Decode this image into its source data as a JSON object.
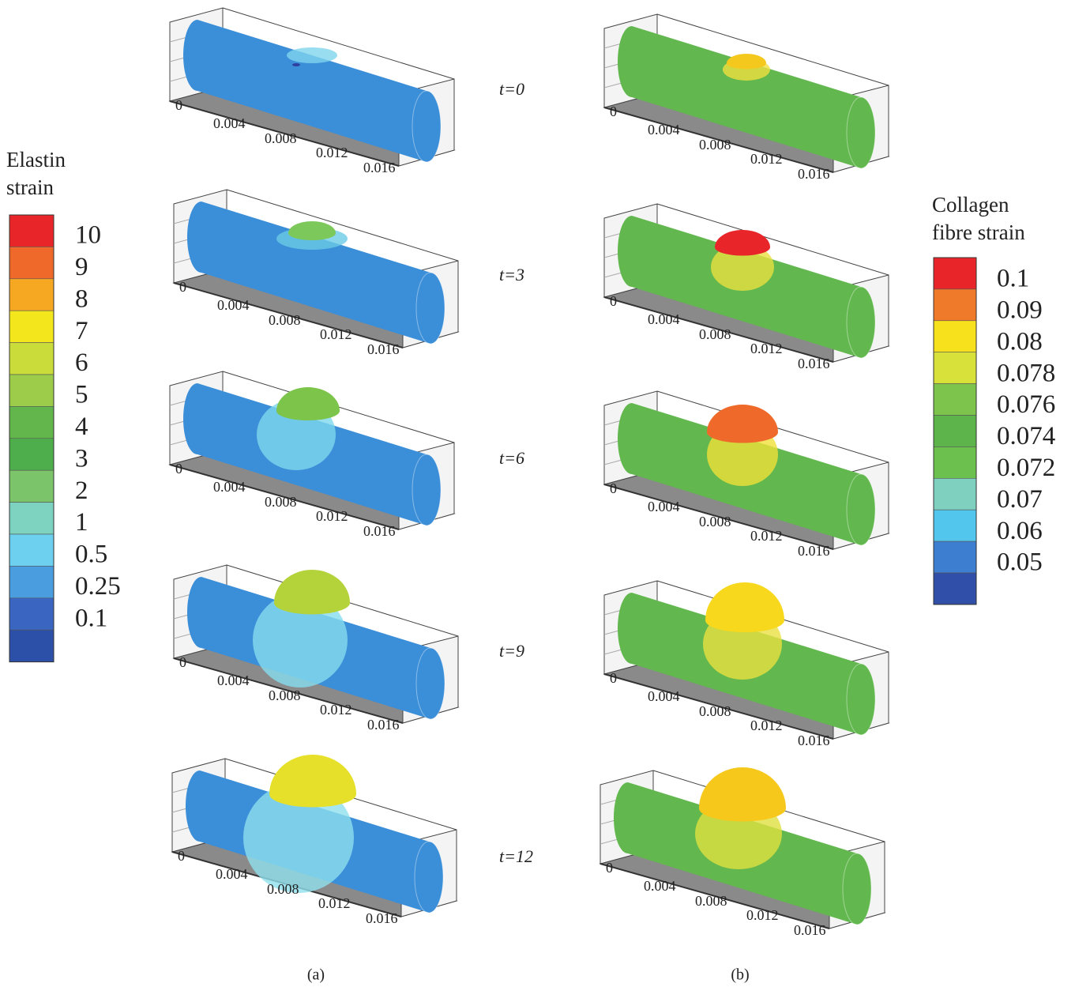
{
  "legend_a": {
    "title": [
      "Elastin",
      "strain"
    ],
    "labels": [
      "10",
      "9",
      "8",
      "7",
      "6",
      "5",
      "4",
      "3",
      "2",
      "1",
      "0.5",
      "0.25",
      "0.1"
    ],
    "colors": [
      "#e8262a",
      "#ef6a2a",
      "#f7a823",
      "#f3e61c",
      "#c9dc3a",
      "#9ccc4a",
      "#62b64c",
      "#4fae4c",
      "#7cc46a",
      "#7ed2c0",
      "#6cd0ee",
      "#4a9ee0",
      "#3a66c2",
      "#2c4fa8"
    ]
  },
  "legend_b": {
    "title": [
      "Collagen",
      "fibre strain"
    ],
    "labels": [
      "0.1",
      "0.09",
      "0.08",
      "0.078",
      "0.076",
      "0.074",
      "0.072",
      "0.07",
      "0.06",
      "0.05"
    ],
    "colors": [
      "#e8262a",
      "#ef7a2a",
      "#f7e01c",
      "#d8e03a",
      "#7cc44c",
      "#5cb44a",
      "#6cc04e",
      "#80d0c0",
      "#52c6ec",
      "#3e7ed0",
      "#2f4fa8"
    ]
  },
  "axis_ticks": [
    "0",
    "0.004",
    "0.008",
    "0.012",
    "0.016"
  ],
  "times": [
    "t=0",
    "t=3",
    "t=6",
    "t=9",
    "t=12"
  ],
  "captions": [
    "(a)",
    "(b)"
  ]
}
